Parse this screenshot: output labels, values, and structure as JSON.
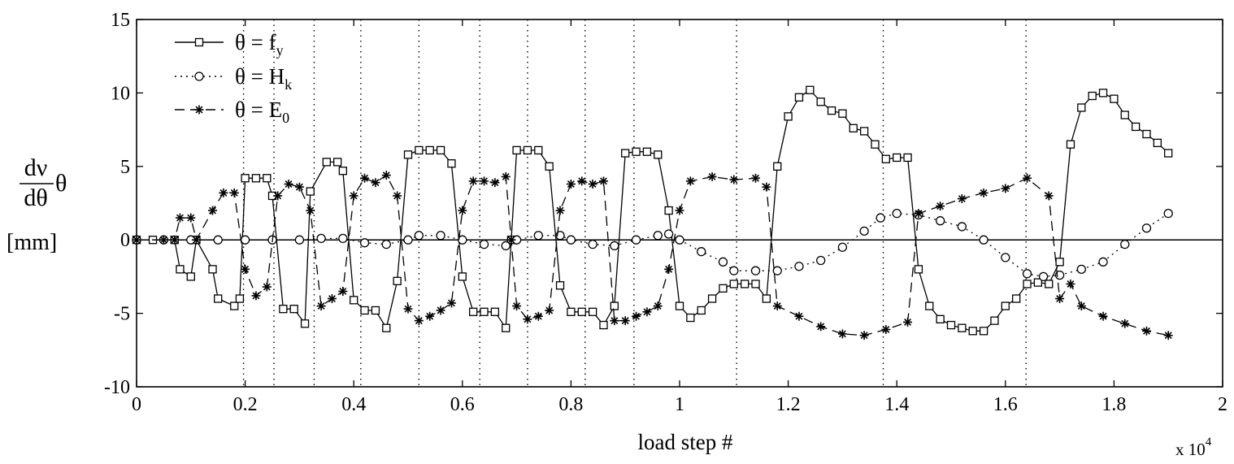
{
  "chart_data": {
    "type": "line",
    "title": "",
    "xlabel": "load step #",
    "x_multiplier_label": "x 10",
    "x_multiplier_exponent": "4",
    "ylabel": {
      "numerator": "dν",
      "denominator": "dθ",
      "symbol": "θ",
      "unit": "[mm]"
    },
    "xlim": [
      0,
      2
    ],
    "ylim": [
      -10,
      15
    ],
    "x_ticks": [
      "0",
      "0.2",
      "0.4",
      "0.6",
      "0.8",
      "1",
      "1.2",
      "1.4",
      "1.6",
      "1.8",
      "2"
    ],
    "y_ticks": [
      "15",
      "10",
      "5",
      "0",
      "-5",
      "-10"
    ],
    "y_tick_values": [
      15,
      10,
      5,
      0,
      -5,
      -10
    ],
    "grid": "vertical dotted lines at load-step boundaries",
    "vlines": [
      0.197,
      0.253,
      0.327,
      0.413,
      0.52,
      0.632,
      0.72,
      0.826,
      0.916,
      1.105,
      1.375,
      1.638
    ],
    "legend_position": "top-left",
    "series": [
      {
        "name": "θ = f_y",
        "legend_base": "θ = f",
        "legend_sub": "y",
        "marker": "square",
        "line": "solid",
        "points": [
          [
            0,
            0
          ],
          [
            0.03,
            0
          ],
          [
            0.07,
            0
          ],
          [
            0.08,
            -2
          ],
          [
            0.1,
            -2.5
          ],
          [
            0.11,
            0
          ],
          [
            0.14,
            -2
          ],
          [
            0.15,
            -4
          ],
          [
            0.18,
            -4.5
          ],
          [
            0.19,
            -4
          ],
          [
            0.2,
            4.2
          ],
          [
            0.22,
            4.2
          ],
          [
            0.24,
            4.2
          ],
          [
            0.25,
            3
          ],
          [
            0.27,
            -4.7
          ],
          [
            0.29,
            -4.7
          ],
          [
            0.31,
            -5.7
          ],
          [
            0.32,
            3.3
          ],
          [
            0.35,
            5.3
          ],
          [
            0.37,
            5.3
          ],
          [
            0.38,
            4.7
          ],
          [
            0.4,
            -4.1
          ],
          [
            0.42,
            -4.8
          ],
          [
            0.44,
            -4.8
          ],
          [
            0.46,
            -6
          ],
          [
            0.48,
            -2.8
          ],
          [
            0.5,
            5.8
          ],
          [
            0.52,
            6.1
          ],
          [
            0.54,
            6.1
          ],
          [
            0.56,
            6.1
          ],
          [
            0.58,
            5.2
          ],
          [
            0.6,
            -2.5
          ],
          [
            0.62,
            -4.9
          ],
          [
            0.64,
            -4.9
          ],
          [
            0.66,
            -4.9
          ],
          [
            0.68,
            -6
          ],
          [
            0.69,
            0
          ],
          [
            0.7,
            6.1
          ],
          [
            0.72,
            6.1
          ],
          [
            0.74,
            6.1
          ],
          [
            0.76,
            5
          ],
          [
            0.78,
            -3.1
          ],
          [
            0.8,
            -4.9
          ],
          [
            0.82,
            -4.9
          ],
          [
            0.84,
            -4.9
          ],
          [
            0.86,
            -5.8
          ],
          [
            0.88,
            -4.5
          ],
          [
            0.9,
            5.9
          ],
          [
            0.92,
            6
          ],
          [
            0.94,
            6
          ],
          [
            0.96,
            5.8
          ],
          [
            0.98,
            2
          ],
          [
            1.0,
            -4.5
          ],
          [
            1.02,
            -5.3
          ],
          [
            1.04,
            -4.8
          ],
          [
            1.06,
            -4
          ],
          [
            1.08,
            -3.3
          ],
          [
            1.1,
            -3
          ],
          [
            1.12,
            -3
          ],
          [
            1.14,
            -3
          ],
          [
            1.16,
            -4
          ],
          [
            1.18,
            5
          ],
          [
            1.2,
            8.4
          ],
          [
            1.22,
            9.7
          ],
          [
            1.24,
            10.2
          ],
          [
            1.26,
            9.4
          ],
          [
            1.28,
            8.8
          ],
          [
            1.3,
            8.6
          ],
          [
            1.32,
            7.6
          ],
          [
            1.34,
            7.4
          ],
          [
            1.36,
            6.5
          ],
          [
            1.38,
            5.5
          ],
          [
            1.4,
            5.6
          ],
          [
            1.42,
            5.6
          ],
          [
            1.44,
            -2
          ],
          [
            1.46,
            -4.5
          ],
          [
            1.48,
            -5.4
          ],
          [
            1.5,
            -5.8
          ],
          [
            1.52,
            -6
          ],
          [
            1.54,
            -6.2
          ],
          [
            1.56,
            -6.2
          ],
          [
            1.58,
            -5.5
          ],
          [
            1.6,
            -4.5
          ],
          [
            1.62,
            -4
          ],
          [
            1.64,
            -3
          ],
          [
            1.66,
            -2.9
          ],
          [
            1.68,
            -3
          ],
          [
            1.7,
            -1.5
          ],
          [
            1.72,
            6.5
          ],
          [
            1.74,
            9
          ],
          [
            1.76,
            9.8
          ],
          [
            1.78,
            10
          ],
          [
            1.8,
            9.6
          ],
          [
            1.82,
            8.5
          ],
          [
            1.84,
            7.7
          ],
          [
            1.86,
            7.2
          ],
          [
            1.88,
            6.6
          ],
          [
            1.9,
            5.9
          ]
        ]
      },
      {
        "name": "θ = H_k",
        "legend_base": "θ = H",
        "legend_sub": "k",
        "marker": "circle",
        "line": "dotted",
        "points": [
          [
            0,
            0
          ],
          [
            0.05,
            0
          ],
          [
            0.1,
            0
          ],
          [
            0.15,
            0
          ],
          [
            0.2,
            0
          ],
          [
            0.25,
            0
          ],
          [
            0.3,
            0
          ],
          [
            0.34,
            0.1
          ],
          [
            0.38,
            0.1
          ],
          [
            0.42,
            -0.2
          ],
          [
            0.46,
            -0.3
          ],
          [
            0.5,
            0
          ],
          [
            0.52,
            0.3
          ],
          [
            0.56,
            0.3
          ],
          [
            0.6,
            0
          ],
          [
            0.64,
            -0.3
          ],
          [
            0.68,
            -0.4
          ],
          [
            0.7,
            0
          ],
          [
            0.74,
            0.3
          ],
          [
            0.78,
            0.3
          ],
          [
            0.8,
            0
          ],
          [
            0.84,
            -0.3
          ],
          [
            0.88,
            -0.4
          ],
          [
            0.92,
            0
          ],
          [
            0.96,
            0.3
          ],
          [
            0.98,
            0.4
          ],
          [
            1.0,
            0
          ],
          [
            1.04,
            -0.8
          ],
          [
            1.08,
            -1.5
          ],
          [
            1.1,
            -2.1
          ],
          [
            1.14,
            -2.1
          ],
          [
            1.18,
            -2.1
          ],
          [
            1.22,
            -1.8
          ],
          [
            1.26,
            -1.4
          ],
          [
            1.3,
            -0.5
          ],
          [
            1.34,
            0.6
          ],
          [
            1.37,
            1.5
          ],
          [
            1.4,
            1.8
          ],
          [
            1.44,
            1.7
          ],
          [
            1.48,
            1.3
          ],
          [
            1.52,
            0.9
          ],
          [
            1.56,
            0
          ],
          [
            1.6,
            -1.2
          ],
          [
            1.64,
            -2.3
          ],
          [
            1.67,
            -2.5
          ],
          [
            1.7,
            -2.4
          ],
          [
            1.74,
            -2
          ],
          [
            1.78,
            -1.5
          ],
          [
            1.82,
            -0.3
          ],
          [
            1.86,
            0.8
          ],
          [
            1.9,
            1.8
          ]
        ]
      },
      {
        "name": "θ = E_0",
        "legend_base": "θ = E",
        "legend_sub": "0",
        "marker": "asterisk",
        "line": "dashed",
        "points": [
          [
            0,
            0
          ],
          [
            0.05,
            0
          ],
          [
            0.07,
            0
          ],
          [
            0.08,
            1.5
          ],
          [
            0.1,
            1.5
          ],
          [
            0.11,
            0
          ],
          [
            0.14,
            2
          ],
          [
            0.16,
            3.2
          ],
          [
            0.18,
            3.2
          ],
          [
            0.2,
            -2
          ],
          [
            0.22,
            -3.8
          ],
          [
            0.24,
            -3.2
          ],
          [
            0.26,
            3
          ],
          [
            0.28,
            3.8
          ],
          [
            0.3,
            3.6
          ],
          [
            0.32,
            2
          ],
          [
            0.34,
            -4.5
          ],
          [
            0.36,
            -4
          ],
          [
            0.38,
            -3.5
          ],
          [
            0.4,
            3
          ],
          [
            0.42,
            4.2
          ],
          [
            0.44,
            3.9
          ],
          [
            0.46,
            4.4
          ],
          [
            0.48,
            3
          ],
          [
            0.5,
            -4.7
          ],
          [
            0.52,
            -5.5
          ],
          [
            0.54,
            -5.2
          ],
          [
            0.56,
            -4.8
          ],
          [
            0.58,
            -4.3
          ],
          [
            0.6,
            2
          ],
          [
            0.62,
            4
          ],
          [
            0.64,
            4
          ],
          [
            0.66,
            3.9
          ],
          [
            0.68,
            4.3
          ],
          [
            0.69,
            0
          ],
          [
            0.7,
            -4.5
          ],
          [
            0.72,
            -5.4
          ],
          [
            0.74,
            -5.2
          ],
          [
            0.76,
            -4.8
          ],
          [
            0.78,
            2
          ],
          [
            0.8,
            3.8
          ],
          [
            0.82,
            4
          ],
          [
            0.84,
            3.8
          ],
          [
            0.86,
            4
          ],
          [
            0.88,
            -5.5
          ],
          [
            0.9,
            -5.5
          ],
          [
            0.92,
            -5.2
          ],
          [
            0.94,
            -4.9
          ],
          [
            0.96,
            -4.5
          ],
          [
            0.98,
            -2
          ],
          [
            1.0,
            2
          ],
          [
            1.02,
            4
          ],
          [
            1.06,
            4.3
          ],
          [
            1.1,
            4.1
          ],
          [
            1.14,
            4.2
          ],
          [
            1.16,
            3.6
          ],
          [
            1.18,
            -4.5
          ],
          [
            1.22,
            -5.2
          ],
          [
            1.26,
            -5.9
          ],
          [
            1.3,
            -6.4
          ],
          [
            1.34,
            -6.5
          ],
          [
            1.38,
            -6.1
          ],
          [
            1.42,
            -5.6
          ],
          [
            1.44,
            1.8
          ],
          [
            1.48,
            2.3
          ],
          [
            1.52,
            2.8
          ],
          [
            1.56,
            3.2
          ],
          [
            1.6,
            3.5
          ],
          [
            1.64,
            4.2
          ],
          [
            1.68,
            3
          ],
          [
            1.7,
            -4
          ],
          [
            1.72,
            -3
          ],
          [
            1.74,
            -4.5
          ],
          [
            1.78,
            -5.2
          ],
          [
            1.82,
            -5.7
          ],
          [
            1.86,
            -6.2
          ],
          [
            1.9,
            -6.5
          ]
        ]
      }
    ]
  }
}
